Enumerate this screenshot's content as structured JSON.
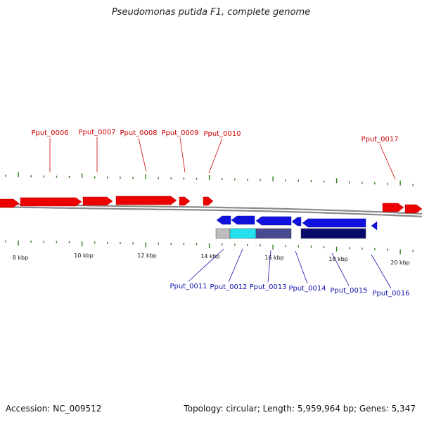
{
  "title": "Pseudomonas putida F1, complete genome",
  "colors": {
    "forward": "#ee0000",
    "reverse": "#1111dd",
    "forward_label": "#cc0000",
    "reverse_label": "#1111aa",
    "backbone": "#8a8a8a",
    "tick": "#2e7d1f"
  },
  "scale": {
    "labels": [
      "8 kbp",
      "10 kbp",
      "12 kbp",
      "14 kbp",
      "16 kbp",
      "18 kbp",
      "20 kbp"
    ]
  },
  "forward_labels": [
    "Pput_0006",
    "Pput_0007",
    "Pput_0008",
    "Pput_0009",
    "Pput_0010",
    "Pput_0017"
  ],
  "reverse_labels": [
    "Pput_0011",
    "Pput_0012",
    "Pput_0013",
    "Pput_0014",
    "Pput_0015",
    "Pput_0016"
  ],
  "feature_track_colors": [
    "#bdbdbd",
    "#22e0ee",
    "#4a4a90",
    "#0a0a6a"
  ],
  "footer": {
    "accession": "Accession: NC_009512",
    "stats": "Topology: circular; Length: 5,959,964 bp; Genes: 5,347"
  }
}
